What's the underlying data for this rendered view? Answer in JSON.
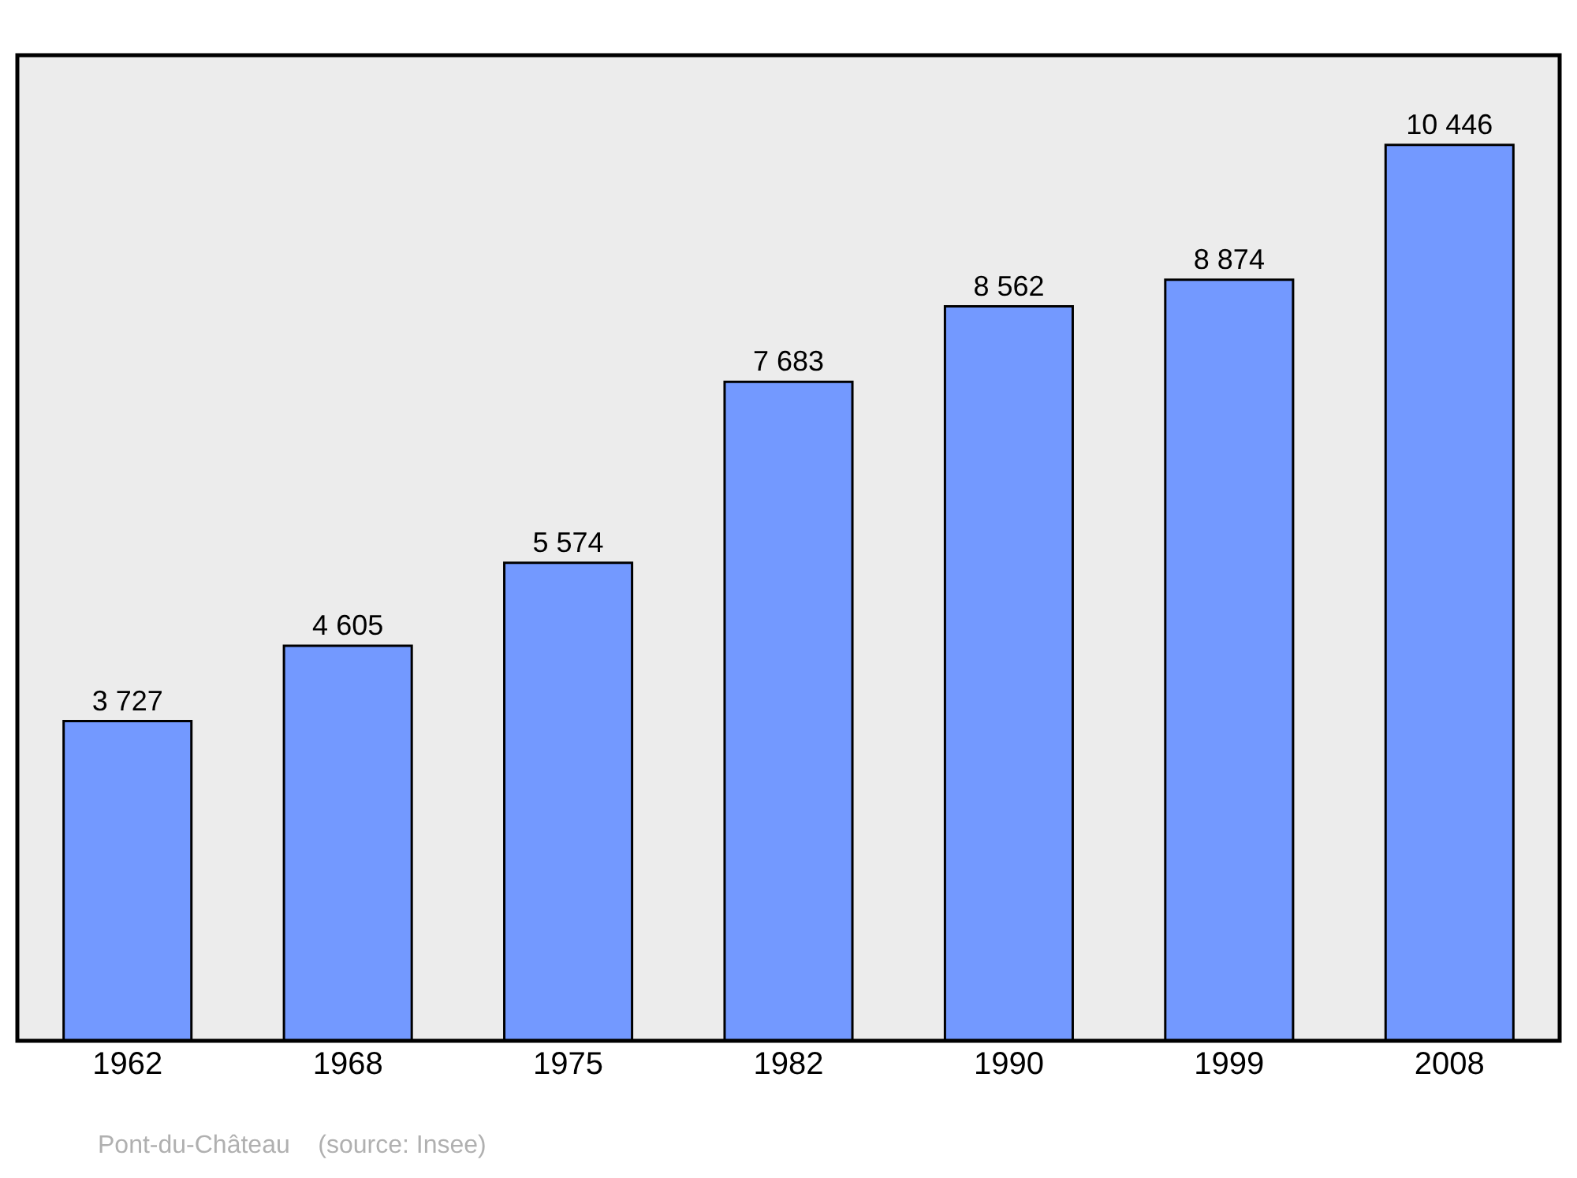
{
  "chart_data": {
    "type": "bar",
    "categories": [
      "1962",
      "1968",
      "1975",
      "1982",
      "1990",
      "1999",
      "2008"
    ],
    "values": [
      3727,
      4605,
      5574,
      7683,
      8562,
      8874,
      10446
    ],
    "value_labels": [
      "3 727",
      "4 605",
      "5 574",
      "7 683",
      "8 562",
      "8 874",
      "10 446"
    ],
    "color": "#7399ff",
    "grid": false,
    "legend": false,
    "annotations": [
      "Pont-du-Château    (source: Insee)"
    ]
  }
}
